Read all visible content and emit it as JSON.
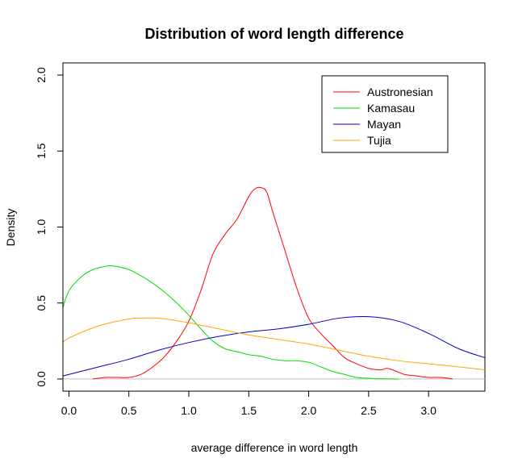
{
  "chart_data": {
    "type": "line",
    "title": "Distribution of word length difference",
    "xlabel": "average difference in word length",
    "ylabel": "Density",
    "xlim": [
      -0.05,
      3.47
    ],
    "ylim": [
      -0.08,
      2.08
    ],
    "xticks": [
      0.0,
      0.5,
      1.0,
      1.5,
      2.0,
      2.5,
      3.0
    ],
    "xtick_labels": [
      "0.0",
      "0.5",
      "1.0",
      "1.5",
      "2.0",
      "2.5",
      "3.0"
    ],
    "yticks": [
      0.0,
      0.5,
      1.0,
      1.5,
      2.0
    ],
    "ytick_labels": [
      "0.0",
      "0.5",
      "1.0",
      "1.5",
      "2.0"
    ],
    "grid": false,
    "legend_position": "top-right",
    "baseline": {
      "y": 0,
      "color": "#bebebe"
    },
    "series": [
      {
        "name": "Austronesian",
        "color": "#ff0000",
        "x": [
          0.2,
          0.3,
          0.4,
          0.5,
          0.6,
          0.7,
          0.8,
          0.9,
          1.0,
          1.1,
          1.2,
          1.3,
          1.4,
          1.5,
          1.55,
          1.6,
          1.65,
          1.7,
          1.8,
          1.9,
          2.0,
          2.1,
          2.2,
          2.3,
          2.4,
          2.5,
          2.6,
          2.65,
          2.7,
          2.8,
          2.9,
          3.0,
          3.1,
          3.2
        ],
        "y": [
          0.0,
          0.01,
          0.01,
          0.01,
          0.03,
          0.08,
          0.15,
          0.25,
          0.38,
          0.58,
          0.82,
          0.95,
          1.05,
          1.2,
          1.25,
          1.26,
          1.23,
          1.1,
          0.85,
          0.6,
          0.4,
          0.3,
          0.22,
          0.14,
          0.1,
          0.07,
          0.06,
          0.07,
          0.06,
          0.03,
          0.02,
          0.01,
          0.01,
          0.0
        ]
      },
      {
        "name": "Kamasau",
        "color": "#00dd00",
        "x": [
          -0.05,
          0.0,
          0.1,
          0.2,
          0.3,
          0.35,
          0.4,
          0.5,
          0.6,
          0.7,
          0.8,
          0.9,
          1.0,
          1.1,
          1.2,
          1.3,
          1.4,
          1.5,
          1.6,
          1.7,
          1.8,
          1.9,
          2.0,
          2.1,
          2.2,
          2.3,
          2.4,
          2.5,
          2.6,
          2.7,
          2.75
        ],
        "y": [
          0.47,
          0.58,
          0.67,
          0.72,
          0.74,
          0.745,
          0.74,
          0.72,
          0.68,
          0.63,
          0.57,
          0.5,
          0.42,
          0.33,
          0.25,
          0.2,
          0.18,
          0.16,
          0.15,
          0.13,
          0.12,
          0.12,
          0.11,
          0.08,
          0.05,
          0.03,
          0.01,
          0.005,
          0.002,
          0.0,
          0.0
        ]
      },
      {
        "name": "Mayan",
        "color": "#0000cc",
        "x": [
          -0.05,
          0.0,
          0.25,
          0.5,
          0.75,
          1.0,
          1.25,
          1.5,
          1.75,
          2.0,
          2.25,
          2.5,
          2.75,
          3.0,
          3.25,
          3.47
        ],
        "y": [
          0.02,
          0.03,
          0.08,
          0.13,
          0.19,
          0.24,
          0.28,
          0.31,
          0.33,
          0.36,
          0.4,
          0.41,
          0.38,
          0.3,
          0.2,
          0.14
        ]
      },
      {
        "name": "Tujia",
        "color": "#ffa500",
        "x": [
          -0.05,
          0.0,
          0.25,
          0.5,
          0.6,
          0.75,
          1.0,
          1.25,
          1.5,
          1.75,
          2.0,
          2.25,
          2.5,
          2.75,
          3.0,
          3.25,
          3.47
        ],
        "y": [
          0.24,
          0.27,
          0.35,
          0.395,
          0.4,
          0.4,
          0.37,
          0.33,
          0.29,
          0.26,
          0.23,
          0.19,
          0.15,
          0.12,
          0.1,
          0.08,
          0.06
        ]
      }
    ]
  }
}
